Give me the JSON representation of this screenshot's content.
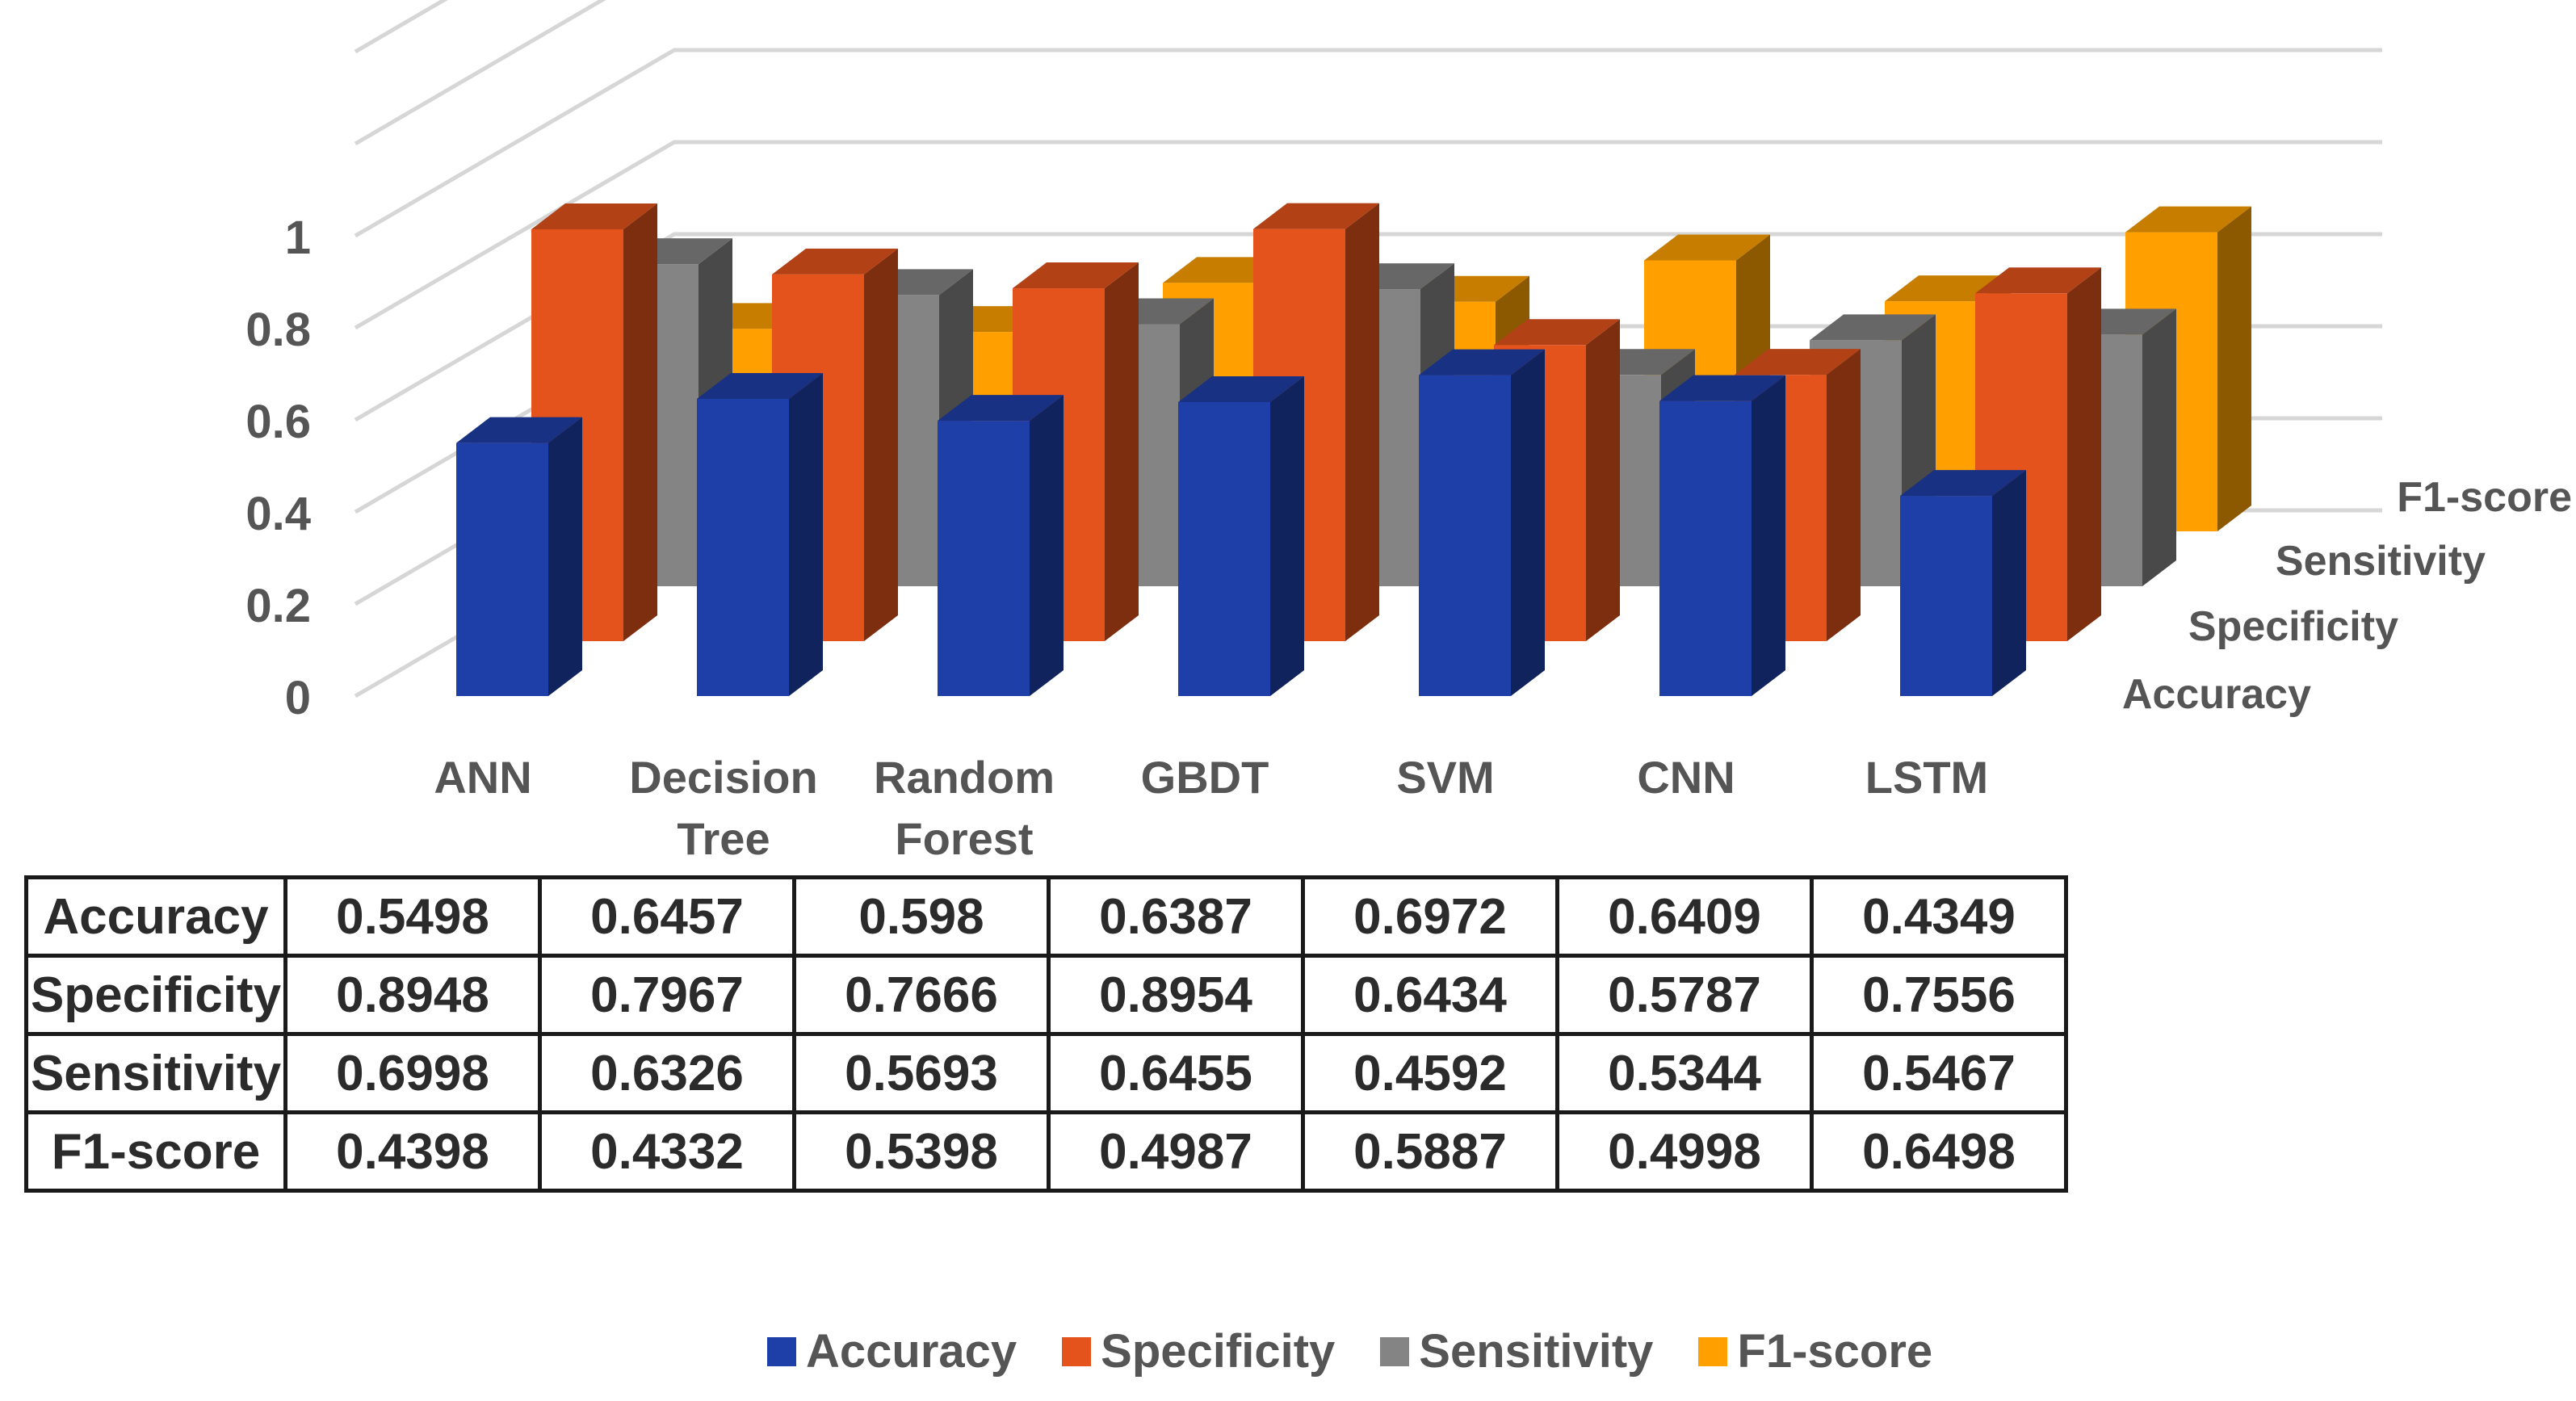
{
  "chart_data": {
    "type": "bar",
    "style": "3d-clustered",
    "categories": [
      "ANN",
      "Decision Tree",
      "Random Forest",
      "GBDT",
      "SVM",
      "CNN",
      "LSTM"
    ],
    "category_lines": [
      [
        "ANN"
      ],
      [
        "Decision",
        "Tree"
      ],
      [
        "Random",
        "Forest"
      ],
      [
        "GBDT"
      ],
      [
        "SVM"
      ],
      [
        "CNN"
      ],
      [
        "LSTM"
      ]
    ],
    "series": [
      {
        "name": "Accuracy",
        "values": [
          0.5498,
          0.6457,
          0.598,
          0.6387,
          0.6972,
          0.6409,
          0.4349
        ],
        "color": "#1F3FA8"
      },
      {
        "name": "Specificity",
        "values": [
          0.8948,
          0.7967,
          0.7666,
          0.8954,
          0.6434,
          0.5787,
          0.7556
        ],
        "color": "#E4531C"
      },
      {
        "name": "Sensitivity",
        "values": [
          0.6998,
          0.6326,
          0.5693,
          0.6455,
          0.4592,
          0.5344,
          0.5467
        ],
        "color": "#848484"
      },
      {
        "name": "F1-score",
        "values": [
          0.4398,
          0.4332,
          0.5398,
          0.4987,
          0.5887,
          0.4998,
          0.6498
        ],
        "color": "#FFA000"
      }
    ],
    "yticks": [
      "0",
      "0.2",
      "0.4",
      "0.6",
      "0.8",
      "1"
    ],
    "ylim": [
      0,
      1.4
    ],
    "depth_labels": [
      "F1-score",
      "Sensitivity",
      "Specificity",
      "Accuracy"
    ],
    "legend": "bottom",
    "data_table": true
  },
  "table": {
    "rows": [
      {
        "label": "Accuracy",
        "values": [
          "0.5498",
          "0.6457",
          "0.598",
          "0.6387",
          "0.6972",
          "0.6409",
          "0.4349"
        ]
      },
      {
        "label": "Specificity",
        "values": [
          "0.8948",
          "0.7967",
          "0.7666",
          "0.8954",
          "0.6434",
          "0.5787",
          "0.7556"
        ]
      },
      {
        "label": "Sensitivity",
        "values": [
          "0.6998",
          "0.6326",
          "0.5693",
          "0.6455",
          "0.4592",
          "0.5344",
          "0.5467"
        ]
      },
      {
        "label": "F1-score",
        "values": [
          "0.4398",
          "0.4332",
          "0.5398",
          "0.4987",
          "0.5887",
          "0.4998",
          "0.6498"
        ]
      }
    ]
  },
  "legend": {
    "items": [
      {
        "label": "Accuracy",
        "color": "#1F3FA8"
      },
      {
        "label": "Specificity",
        "color": "#E4531C"
      },
      {
        "label": "Sensitivity",
        "color": "#848484"
      },
      {
        "label": "F1-score",
        "color": "#FFA000"
      }
    ]
  }
}
